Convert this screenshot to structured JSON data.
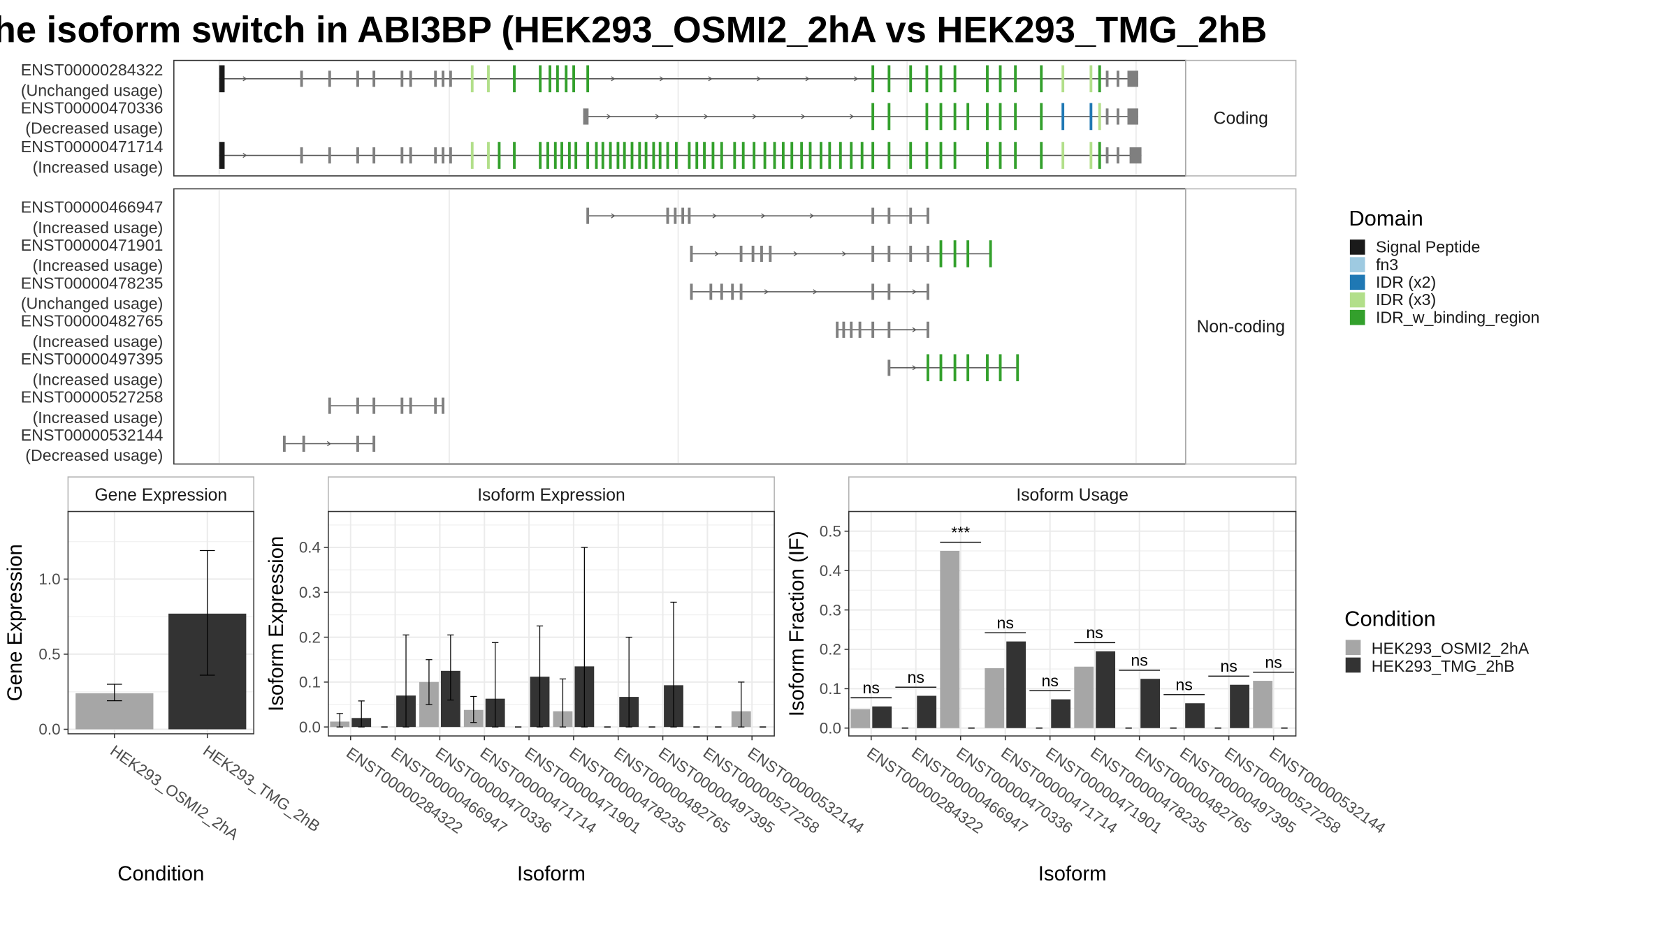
{
  "title": "he isoform switch in ABI3BP (HEK293_OSMI2_2hA vs HEK293_TMG_2hB",
  "colors": {
    "condA": "#a6a6a6",
    "condB": "#333333",
    "Signal Peptide": "#1a1a1a",
    "fn3": "#9ecae1",
    "IDR (x2)": "#1f78b4",
    "IDR (x3)": "#b2df8a",
    "IDR_w_binding_region": "#33a02c",
    "exon": "#7f7f7f",
    "intron": "#555555"
  },
  "structure": {
    "coding_label": "Coding",
    "noncoding_label": "Non-coding",
    "coding": [
      {
        "id": "ENST00000284322",
        "usage": "(Unchanged usage)",
        "span": [
          203,
          1054
        ],
        "exons": [
          [
            203,
            208,
            "Signal Peptide"
          ],
          [
            279,
            "exon"
          ],
          [
            305,
            "exon"
          ],
          [
            331,
            "exon"
          ],
          [
            346,
            "exon"
          ],
          [
            372,
            "exon"
          ],
          [
            380,
            "exon"
          ],
          [
            403,
            "exon"
          ],
          [
            410,
            "exon"
          ],
          [
            417,
            "exon"
          ],
          [
            437,
            "IDR (x3)"
          ],
          [
            452,
            "IDR (x3)"
          ],
          [
            476,
            "IDR_w_binding_region"
          ],
          [
            500,
            "IDR_w_binding_region"
          ],
          [
            509,
            "IDR_w_binding_region"
          ],
          [
            516,
            "IDR_w_binding_region"
          ],
          [
            524,
            "IDR_w_binding_region"
          ],
          [
            531,
            "IDR_w_binding_region"
          ],
          [
            544,
            "IDR_w_binding_region"
          ],
          [
            808,
            "IDR_w_binding_region"
          ],
          [
            823,
            "IDR_w_binding_region"
          ],
          [
            843,
            "IDR_w_binding_region"
          ],
          [
            858,
            "IDR_w_binding_region"
          ],
          [
            871,
            "IDR_w_binding_region"
          ],
          [
            884,
            "IDR_w_binding_region"
          ],
          [
            914,
            "IDR_w_binding_region"
          ],
          [
            926,
            "IDR_w_binding_region"
          ],
          [
            940,
            "IDR_w_binding_region"
          ],
          [
            964,
            "IDR_w_binding_region"
          ],
          [
            984,
            "IDR (x3)"
          ],
          [
            1010,
            "IDR (x3)"
          ],
          [
            1018,
            "IDR_w_binding_region"
          ],
          [
            1025,
            "exon"
          ],
          [
            1035,
            "exon"
          ],
          [
            1044,
            1054,
            "exon"
          ]
        ]
      },
      {
        "id": "ENST00000470336",
        "usage": "(Decreased usage)",
        "span": [
          540,
          1054
        ],
        "exons": [
          [
            540,
            545,
            "exon"
          ],
          [
            808,
            "IDR_w_binding_region"
          ],
          [
            823,
            "IDR_w_binding_region"
          ],
          [
            858,
            "IDR_w_binding_region"
          ],
          [
            871,
            "IDR_w_binding_region"
          ],
          [
            884,
            "IDR_w_binding_region"
          ],
          [
            896,
            "IDR_w_binding_region"
          ],
          [
            914,
            "IDR_w_binding_region"
          ],
          [
            926,
            "IDR_w_binding_region"
          ],
          [
            940,
            "IDR_w_binding_region"
          ],
          [
            964,
            "IDR_w_binding_region"
          ],
          [
            984,
            "IDR (x2)"
          ],
          [
            1010,
            "IDR (x2)"
          ],
          [
            1018,
            "IDR (x3)"
          ],
          [
            1025,
            "exon"
          ],
          [
            1035,
            "exon"
          ],
          [
            1044,
            1054,
            "exon"
          ]
        ]
      },
      {
        "id": "ENST00000471714",
        "usage": "(Increased usage)",
        "span": [
          203,
          1057
        ],
        "exons": [
          [
            203,
            208,
            "Signal Peptide"
          ],
          [
            279,
            "exon"
          ],
          [
            305,
            "exon"
          ],
          [
            331,
            "exon"
          ],
          [
            346,
            "exon"
          ],
          [
            372,
            "exon"
          ],
          [
            380,
            "exon"
          ],
          [
            403,
            "exon"
          ],
          [
            410,
            "exon"
          ],
          [
            417,
            "exon"
          ],
          [
            437,
            "IDR (x3)"
          ],
          [
            452,
            "IDR (x3)"
          ],
          [
            462,
            "IDR_w_binding_region"
          ],
          [
            476,
            "IDR_w_binding_region"
          ],
          [
            500,
            "IDR_w_binding_region"
          ],
          [
            507,
            "IDR_w_binding_region"
          ],
          [
            514,
            "IDR_w_binding_region"
          ],
          [
            520,
            "IDR_w_binding_region"
          ],
          [
            527,
            "IDR_w_binding_region"
          ],
          [
            533,
            "IDR_w_binding_region"
          ],
          [
            544,
            "IDR_w_binding_region"
          ],
          [
            552,
            "IDR_w_binding_region"
          ],
          [
            558,
            "IDR_w_binding_region"
          ],
          [
            565,
            "IDR_w_binding_region"
          ],
          [
            572,
            "IDR_w_binding_region"
          ],
          [
            578,
            "IDR_w_binding_region"
          ],
          [
            585,
            "IDR_w_binding_region"
          ],
          [
            592,
            "IDR_w_binding_region"
          ],
          [
            598,
            "IDR_w_binding_region"
          ],
          [
            605,
            "IDR_w_binding_region"
          ],
          [
            611,
            "IDR_w_binding_region"
          ],
          [
            618,
            "IDR_w_binding_region"
          ],
          [
            626,
            "IDR_w_binding_region"
          ],
          [
            638,
            "IDR_w_binding_region"
          ],
          [
            645,
            "IDR_w_binding_region"
          ],
          [
            652,
            "IDR_w_binding_region"
          ],
          [
            660,
            "IDR_w_binding_region"
          ],
          [
            668,
            "IDR_w_binding_region"
          ],
          [
            680,
            "IDR_w_binding_region"
          ],
          [
            688,
            "IDR_w_binding_region"
          ],
          [
            698,
            "IDR_w_binding_region"
          ],
          [
            708,
            "IDR_w_binding_region"
          ],
          [
            717,
            "IDR_w_binding_region"
          ],
          [
            725,
            "IDR_w_binding_region"
          ],
          [
            733,
            "IDR_w_binding_region"
          ],
          [
            742,
            "IDR_w_binding_region"
          ],
          [
            750,
            "IDR_w_binding_region"
          ],
          [
            760,
            "IDR_w_binding_region"
          ],
          [
            768,
            "IDR_w_binding_region"
          ],
          [
            778,
            "IDR_w_binding_region"
          ],
          [
            788,
            "IDR_w_binding_region"
          ],
          [
            798,
            "IDR_w_binding_region"
          ],
          [
            808,
            "IDR_w_binding_region"
          ],
          [
            823,
            "IDR_w_binding_region"
          ],
          [
            843,
            "IDR_w_binding_region"
          ],
          [
            858,
            "IDR_w_binding_region"
          ],
          [
            871,
            "IDR_w_binding_region"
          ],
          [
            884,
            "IDR_w_binding_region"
          ],
          [
            914,
            "IDR_w_binding_region"
          ],
          [
            926,
            "IDR_w_binding_region"
          ],
          [
            940,
            "IDR_w_binding_region"
          ],
          [
            964,
            "IDR_w_binding_region"
          ],
          [
            984,
            "IDR (x3)"
          ],
          [
            1010,
            "IDR (x3)"
          ],
          [
            1018,
            "IDR_w_binding_region"
          ],
          [
            1025,
            "exon"
          ],
          [
            1035,
            "exon"
          ],
          [
            1046,
            1057,
            "exon"
          ]
        ]
      }
    ],
    "noncoding": [
      {
        "id": "ENST00000466947",
        "usage": "(Increased usage)",
        "span": [
          544,
          859
        ],
        "exons": [
          [
            544,
            "exon"
          ],
          [
            618,
            "exon"
          ],
          [
            625,
            "exon"
          ],
          [
            632,
            "exon"
          ],
          [
            638,
            "exon"
          ],
          [
            808,
            "exon"
          ],
          [
            823,
            "exon"
          ],
          [
            843,
            "exon"
          ],
          [
            859,
            "exon"
          ]
        ]
      },
      {
        "id": "ENST00000471901",
        "usage": "(Increased usage)",
        "span": [
          640,
          917
        ],
        "exons": [
          [
            640,
            "exon"
          ],
          [
            686,
            "exon"
          ],
          [
            697,
            "exon"
          ],
          [
            705,
            "exon"
          ],
          [
            713,
            "exon"
          ],
          [
            808,
            "exon"
          ],
          [
            823,
            "exon"
          ],
          [
            843,
            "exon"
          ],
          [
            859,
            "exon"
          ],
          [
            871,
            "IDR_w_binding_region"
          ],
          [
            884,
            "IDR_w_binding_region"
          ],
          [
            896,
            "IDR_w_binding_region"
          ],
          [
            917,
            "IDR_w_binding_region"
          ]
        ]
      },
      {
        "id": "ENST00000478235",
        "usage": "(Unchanged usage)",
        "span": [
          640,
          859
        ],
        "exons": [
          [
            640,
            "exon"
          ],
          [
            658,
            "exon"
          ],
          [
            668,
            "exon"
          ],
          [
            678,
            "exon"
          ],
          [
            686,
            "exon"
          ],
          [
            808,
            "exon"
          ],
          [
            823,
            "exon"
          ],
          [
            859,
            "exon"
          ]
        ]
      },
      {
        "id": "ENST00000482765",
        "usage": "(Increased usage)",
        "span": [
          775,
          859
        ],
        "exons": [
          [
            775,
            "exon"
          ],
          [
            781,
            "exon"
          ],
          [
            788,
            "exon"
          ],
          [
            796,
            "exon"
          ],
          [
            808,
            "exon"
          ],
          [
            823,
            "exon"
          ],
          [
            859,
            "exon"
          ]
        ]
      },
      {
        "id": "ENST00000497395",
        "usage": "(Increased usage)",
        "span": [
          823,
          942
        ],
        "exons": [
          [
            823,
            "exon"
          ],
          [
            859,
            "IDR_w_binding_region"
          ],
          [
            871,
            "IDR_w_binding_region"
          ],
          [
            884,
            "IDR_w_binding_region"
          ],
          [
            896,
            "IDR_w_binding_region"
          ],
          [
            914,
            "IDR_w_binding_region"
          ],
          [
            926,
            "IDR_w_binding_region"
          ],
          [
            942,
            "IDR_w_binding_region"
          ]
        ]
      },
      {
        "id": "ENST00000527258",
        "usage": "(Increased usage)",
        "span": [
          305,
          410
        ],
        "exons": [
          [
            305,
            "exon"
          ],
          [
            331,
            "exon"
          ],
          [
            346,
            "exon"
          ],
          [
            372,
            "exon"
          ],
          [
            380,
            "exon"
          ],
          [
            403,
            "exon"
          ],
          [
            410,
            "exon"
          ]
        ]
      },
      {
        "id": "ENST00000532144",
        "usage": "(Decreased usage)",
        "span": [
          263,
          346
        ],
        "exons": [
          [
            263,
            "exon"
          ],
          [
            281,
            "exon"
          ],
          [
            331,
            "exon"
          ],
          [
            346,
            "exon"
          ]
        ]
      }
    ]
  },
  "domain_legend": {
    "title": "Domain",
    "items": [
      "Signal Peptide",
      "fn3",
      "IDR (x2)",
      "IDR (x3)",
      "IDR_w_binding_region"
    ]
  },
  "condition_legend": {
    "title": "Condition",
    "items": [
      "HEK293_OSMI2_2hA",
      "HEK293_TMG_2hB"
    ]
  },
  "chart_data": [
    {
      "type": "bar",
      "title": "Gene Expression",
      "xlabel": "Condition",
      "ylabel": "Gene Expression",
      "ylim": [
        -0.03,
        1.45
      ],
      "yticks": [
        "0.0",
        "0.5",
        "1.0"
      ],
      "categories": [
        "HEK293_OSMI2_2hA",
        "HEK293_TMG_2hB"
      ],
      "values": [
        0.24,
        0.77
      ],
      "err_low": [
        0.19,
        0.36
      ],
      "err_high": [
        0.3,
        1.19
      ]
    },
    {
      "type": "bar",
      "title": "Isoform Expression",
      "xlabel": "Isoform",
      "ylabel": "Isoform Expression",
      "ylim": [
        -0.02,
        0.48
      ],
      "yticks": [
        "0.0",
        "0.1",
        "0.2",
        "0.3",
        "0.4"
      ],
      "categories": [
        "ENST00000284322",
        "ENST00000466947",
        "ENST00000470336",
        "ENST00000471714",
        "ENST00000471901",
        "ENST00000478235",
        "ENST00000482765",
        "ENST00000497395",
        "ENST00000527258",
        "ENST00000532144"
      ],
      "series": [
        {
          "name": "HEK293_OSMI2_2hA",
          "values": [
            0.012,
            0.0,
            0.1,
            0.038,
            0.0,
            0.035,
            0.0,
            0.0,
            0.0,
            0.035
          ],
          "err_low": [
            0.0,
            0.0,
            0.05,
            0.01,
            0.0,
            0.0,
            0.0,
            0.0,
            0.0,
            0.0
          ],
          "err_high": [
            0.03,
            0.0,
            0.15,
            0.068,
            0.0,
            0.107,
            0.0,
            0.0,
            0.0,
            0.1
          ]
        },
        {
          "name": "HEK293_TMG_2hB",
          "values": [
            0.02,
            0.07,
            0.125,
            0.063,
            0.112,
            0.135,
            0.067,
            0.093,
            0.0,
            0.0
          ],
          "err_low": [
            0.0,
            0.0,
            0.06,
            0.0,
            0.0,
            0.0,
            0.0,
            0.0,
            0.0,
            0.0
          ],
          "err_high": [
            0.058,
            0.205,
            0.205,
            0.188,
            0.225,
            0.4,
            0.2,
            0.278,
            0.0,
            0.0
          ]
        }
      ]
    },
    {
      "type": "bar",
      "title": "Isoform Usage",
      "xlabel": "Isoform",
      "ylabel": "Isoform Fraction (IF)",
      "ylim": [
        -0.02,
        0.55
      ],
      "yticks": [
        "0.0",
        "0.1",
        "0.2",
        "0.3",
        "0.4",
        "0.5"
      ],
      "categories": [
        "ENST00000284322",
        "ENST00000466947",
        "ENST00000470336",
        "ENST00000471714",
        "ENST00000471901",
        "ENST00000478235",
        "ENST00000482765",
        "ENST00000497395",
        "ENST00000527258",
        "ENST00000532144"
      ],
      "series": [
        {
          "name": "HEK293_OSMI2_2hA",
          "values": [
            0.048,
            0.0,
            0.45,
            0.152,
            0.0,
            0.156,
            0.0,
            0.0,
            0.0,
            0.12
          ]
        },
        {
          "name": "HEK293_TMG_2hB",
          "values": [
            0.055,
            0.082,
            0.0,
            0.22,
            0.073,
            0.195,
            0.125,
            0.063,
            0.11,
            0.0
          ]
        }
      ],
      "significance": [
        "ns",
        "ns",
        "***",
        "ns",
        "ns",
        "ns",
        "ns",
        "ns",
        "ns",
        "ns"
      ]
    }
  ]
}
